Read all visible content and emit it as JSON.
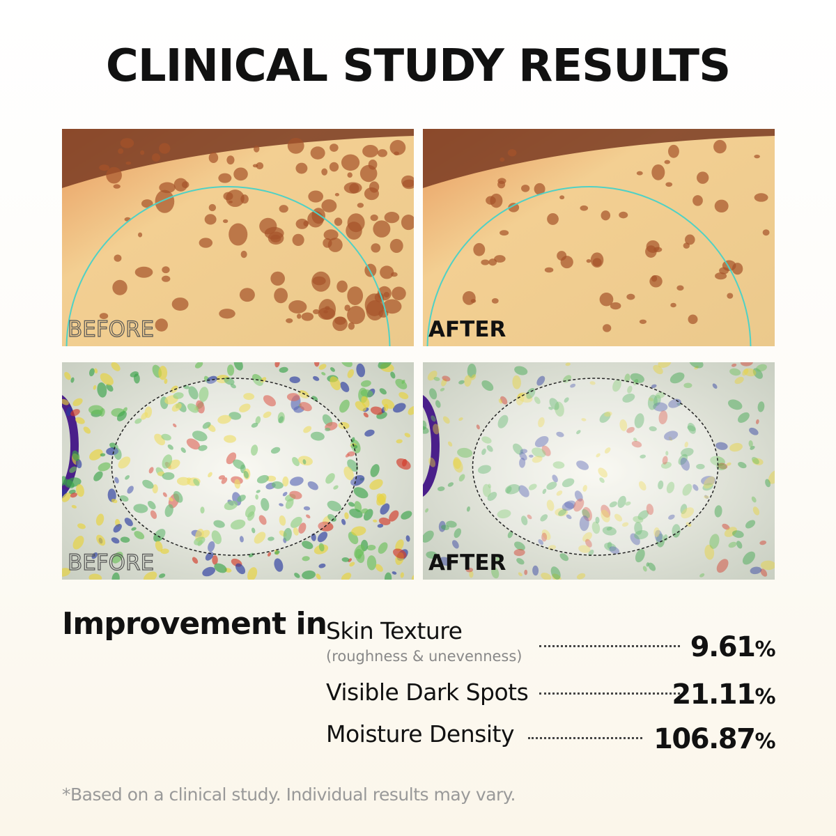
{
  "header": {
    "title": "CLINICAL STUDY RESULTS"
  },
  "panels": [
    {
      "label": "BEFORE"
    },
    {
      "label": "AFTER"
    },
    {
      "label": "BEFORE"
    },
    {
      "label": "AFTER"
    }
  ],
  "results": {
    "heading": "Improvement in",
    "items": [
      {
        "name": "Skin Texture",
        "sub": "(roughness & unevenness)",
        "value": "9.61",
        "unit": "%"
      },
      {
        "name": "Visible Dark Spots",
        "value": "21.11",
        "unit": "%"
      },
      {
        "name": "Moisture Density",
        "value": "106.87",
        "unit": "%"
      }
    ]
  },
  "footnote": "*Based on a clinical study. Individual results may vary."
}
